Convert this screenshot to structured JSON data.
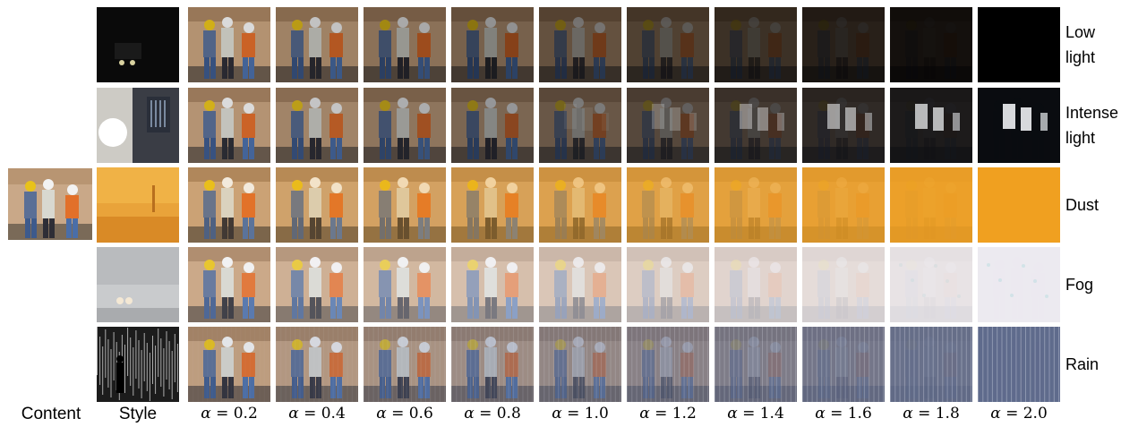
{
  "labels": {
    "content": "Content",
    "style": "Style",
    "alpha_symbol": "α",
    "alpha_values": [
      "= 0.2",
      "= 0.4",
      "= 0.6",
      "= 0.8",
      "= 1.0",
      "= 1.2",
      "= 1.4",
      "= 1.6",
      "= 1.8",
      "= 2.0"
    ]
  },
  "rows": [
    {
      "label_lines": [
        "Low",
        "light"
      ],
      "style_color": "#0a0a0a",
      "target_color": "#000000"
    },
    {
      "label_lines": [
        "Intense",
        "light"
      ],
      "style_color": "#3a3d45",
      "target_color": "#0a0c10"
    },
    {
      "label_lines": [
        "Dust"
      ],
      "style_color": "#e9a33a",
      "target_color": "#f0a020"
    },
    {
      "label_lines": [
        "Fog"
      ],
      "style_color": "#c9cbcd",
      "target_color": "#eceaf0"
    },
    {
      "label_lines": [
        "Rain"
      ],
      "style_color": "#5a5a5a",
      "target_color": "#5f6b8c"
    }
  ]
}
